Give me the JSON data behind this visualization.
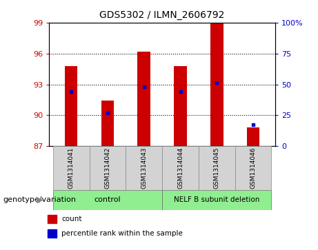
{
  "title": "GDS5302 / ILMN_2606792",
  "samples": [
    "GSM1314041",
    "GSM1314042",
    "GSM1314043",
    "GSM1314044",
    "GSM1314045",
    "GSM1314046"
  ],
  "red_bar_values": [
    94.8,
    91.4,
    96.2,
    94.8,
    99.0,
    88.8
  ],
  "blue_dot_values": [
    92.3,
    90.2,
    92.8,
    92.3,
    93.2,
    89.1
  ],
  "y_min": 87,
  "y_max": 99,
  "y_left_ticks": [
    87,
    90,
    93,
    96,
    99
  ],
  "y_right_ticks": [
    0,
    25,
    50,
    75,
    100
  ],
  "y_right_tick_positions": [
    87,
    90,
    93,
    96,
    99
  ],
  "dotted_lines": [
    90,
    93,
    96
  ],
  "n_control": 3,
  "n_deletion": 3,
  "control_label": "control",
  "deletion_label": "NELF B subunit deletion",
  "genotype_label": "genotype/variation",
  "legend_count": "count",
  "legend_percentile": "percentile rank within the sample",
  "red_color": "#cc0000",
  "blue_color": "#0000cc",
  "green_bg": "#90ee90",
  "bar_width": 0.35,
  "sample_bg": "#d3d3d3",
  "plot_bg": "#ffffff"
}
